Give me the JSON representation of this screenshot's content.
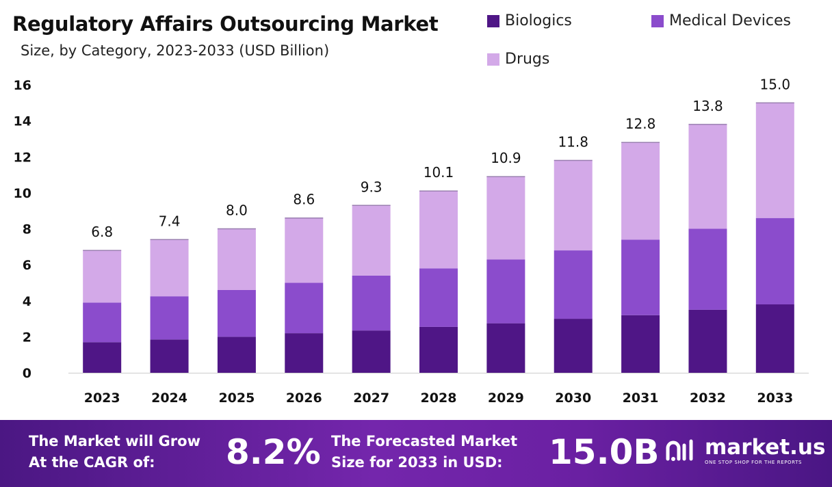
{
  "header": {
    "title": "Regulatory Affairs Outsourcing Market",
    "subtitle": "Size, by Category, 2023-2033 (USD Billion)"
  },
  "colors": {
    "biologics": "#4f1686",
    "medical_devices": "#8b4ccc",
    "drugs": "#d3a9e8",
    "banner": "#6a20a2"
  },
  "chart_data": {
    "type": "bar",
    "stacked": true,
    "categories": [
      "2023",
      "2024",
      "2025",
      "2026",
      "2027",
      "2028",
      "2029",
      "2030",
      "2031",
      "2032",
      "2033"
    ],
    "series": [
      {
        "name": "Biologics",
        "values": [
          1.7,
          1.85,
          2.0,
          2.2,
          2.35,
          2.55,
          2.75,
          3.0,
          3.2,
          3.5,
          3.8
        ]
      },
      {
        "name": "Medical Devices",
        "values": [
          2.2,
          2.4,
          2.6,
          2.8,
          3.05,
          3.25,
          3.55,
          3.8,
          4.2,
          4.5,
          4.8
        ]
      },
      {
        "name": "Drugs",
        "values": [
          2.9,
          3.15,
          3.4,
          3.6,
          3.9,
          4.3,
          4.6,
          5.0,
          5.4,
          5.8,
          6.4
        ]
      }
    ],
    "totals": [
      "6.8",
      "7.4",
      "8.0",
      "8.6",
      "9.3",
      "10.1",
      "10.9",
      "11.8",
      "12.8",
      "13.8",
      "15.0"
    ],
    "yticks": [
      "0",
      "2",
      "4",
      "6",
      "8",
      "10",
      "12",
      "14",
      "16"
    ],
    "ylim": [
      0,
      16
    ],
    "legend_position": "top-right",
    "grid": false
  },
  "banner": {
    "cagr_label_line1": "The Market will Grow",
    "cagr_label_line2": "At the CAGR of:",
    "cagr_value": "8.2%",
    "forecast_label_line1": "The Forecasted Market",
    "forecast_label_line2": "Size for 2033 in USD:",
    "forecast_value": "15.0B",
    "brand_name": "market.us",
    "brand_tagline": "ONE STOP SHOP FOR THE REPORTS"
  }
}
